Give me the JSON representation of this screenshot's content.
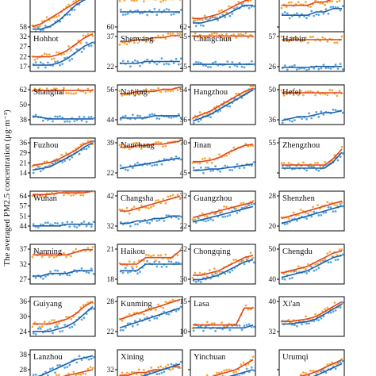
{
  "figure": {
    "ylabel": "The averaged PM2.5 concentration (μg·m⁻³)",
    "colors": {
      "orange_points": "#f6a83a",
      "blue_points": "#5aa6e0",
      "red_line": "#e0461d",
      "blue_line": "#1f5fa8"
    }
  },
  "chart_data": [
    {
      "type": "scatter",
      "city": "",
      "yticks": [
        "66",
        "58"
      ],
      "ylim": [
        55,
        70
      ],
      "o": [
        57,
        58,
        60,
        62,
        64,
        66,
        68,
        69
      ],
      "b": [
        56,
        56,
        57,
        59,
        62,
        65,
        67,
        68
      ]
    },
    {
      "type": "scatter",
      "city": "",
      "yticks": [
        "68",
        "60"
      ],
      "ylim": [
        58,
        70
      ],
      "o": [
        68,
        68,
        68,
        68,
        68,
        68,
        68,
        68
      ],
      "b": [
        64,
        64,
        64,
        64,
        64,
        64,
        64,
        64
      ]
    },
    {
      "type": "scatter",
      "city": "",
      "yticks": [
        "74",
        "62"
      ],
      "ylim": [
        60,
        78
      ],
      "o": [
        66,
        66,
        67,
        68,
        70,
        72,
        74,
        75
      ],
      "b": [
        64,
        64,
        65,
        66,
        68,
        70,
        72,
        72
      ]
    },
    {
      "type": "scatter",
      "city": "",
      "yticks": [
        "36",
        ""
      ],
      "ylim": [
        28,
        40
      ],
      "o": [
        36,
        36,
        36,
        36,
        37,
        37,
        38,
        38
      ],
      "b": [
        33,
        33,
        33,
        33,
        34,
        34,
        35,
        35
      ]
    },
    {
      "type": "scatter",
      "city": "Hohhot",
      "yticks": [
        "32",
        "27",
        "22",
        "17"
      ],
      "ylim": [
        15,
        34
      ],
      "o": [
        22,
        22,
        22,
        23,
        25,
        28,
        31,
        33
      ],
      "b": [
        18,
        18,
        18,
        19,
        21,
        24,
        27,
        29
      ]
    },
    {
      "type": "scatter",
      "city": "Shenyang",
      "yticks": [
        "37",
        "22"
      ],
      "ylim": [
        20,
        40
      ],
      "o": [
        35,
        35,
        36,
        36,
        37,
        37,
        38,
        38
      ],
      "b": [
        24,
        24,
        24,
        25,
        25,
        25,
        25,
        25
      ]
    },
    {
      "type": "scatter",
      "city": "Changchun",
      "yticks": [
        "45",
        "25"
      ],
      "ylim": [
        20,
        48
      ],
      "o": [
        45,
        45,
        45,
        45,
        45,
        45,
        45,
        45
      ],
      "b": [
        25,
        25,
        25,
        25,
        25,
        25,
        25,
        25
      ]
    },
    {
      "type": "scatter",
      "city": "Harbin",
      "yticks": [
        "57",
        "26"
      ],
      "ylim": [
        22,
        62
      ],
      "o": [
        54,
        54,
        54,
        54,
        54,
        54,
        54,
        54
      ],
      "b": [
        26,
        26,
        26,
        26,
        27,
        27,
        27,
        27
      ]
    },
    {
      "type": "scatter",
      "city": "Shanghai",
      "yticks": [
        "62",
        "50",
        "38"
      ],
      "ylim": [
        36,
        64
      ],
      "o": [
        60,
        60,
        60,
        60,
        60,
        60,
        60,
        60
      ],
      "b": [
        42,
        41,
        40,
        40,
        40,
        40,
        40,
        40
      ]
    },
    {
      "type": "scatter",
      "city": "Nanjing",
      "yticks": [
        "56",
        "44"
      ],
      "ylim": [
        42,
        60
      ],
      "o": [
        56,
        56,
        57,
        57,
        57,
        58,
        58,
        59
      ],
      "b": [
        45,
        45,
        45,
        45,
        46,
        46,
        46,
        46
      ]
    },
    {
      "type": "scatter",
      "city": "Hangzhou",
      "yticks": [
        "54",
        "36"
      ],
      "ylim": [
        34,
        58
      ],
      "o": [
        38,
        40,
        42,
        45,
        48,
        51,
        54,
        56
      ],
      "b": [
        36,
        38,
        40,
        43,
        46,
        49,
        52,
        55
      ]
    },
    {
      "type": "scatter",
      "city": "Hefei",
      "yticks": [
        "50",
        "36"
      ],
      "ylim": [
        34,
        54
      ],
      "o": [
        50,
        50,
        50,
        50,
        50,
        50,
        50,
        50
      ],
      "b": [
        36,
        37,
        38,
        38,
        39,
        40,
        40,
        41
      ]
    },
    {
      "type": "scatter",
      "city": "Fuzhou",
      "yticks": [
        "36",
        "29",
        "21",
        "14"
      ],
      "ylim": [
        12,
        38
      ],
      "o": [
        20,
        21,
        22,
        24,
        27,
        30,
        34,
        36
      ],
      "b": [
        17,
        18,
        19,
        22,
        25,
        28,
        32,
        35
      ]
    },
    {
      "type": "scatter",
      "city": "Nanchang",
      "yticks": [
        "39",
        "22"
      ],
      "ylim": [
        18,
        44
      ],
      "o": [
        38,
        38,
        39,
        39,
        40,
        40,
        41,
        42
      ],
      "b": [
        24,
        25,
        26,
        27,
        28,
        29,
        30,
        31
      ]
    },
    {
      "type": "scatter",
      "city": "Jinan",
      "yticks": [
        "70",
        "45"
      ],
      "ylim": [
        42,
        74
      ],
      "o": [
        55,
        55,
        56,
        58,
        62,
        65,
        68,
        69
      ],
      "b": [
        48,
        48,
        49,
        49,
        50,
        51,
        52,
        53
      ]
    },
    {
      "type": "scatter",
      "city": "Zhengzhou",
      "yticks": [
        "55",
        ""
      ],
      "ylim": [
        50,
        75
      ],
      "o": [
        58,
        58,
        58,
        58,
        58,
        58,
        62,
        68
      ],
      "b": [
        56,
        56,
        56,
        56,
        56,
        56,
        60,
        66
      ]
    },
    {
      "type": "scatter",
      "city": "Wuhan",
      "yticks": [
        "64",
        "57",
        "51",
        "44"
      ],
      "ylim": [
        42,
        66
      ],
      "o": [
        64,
        64,
        64,
        65,
        65,
        65,
        65,
        66
      ],
      "b": [
        45,
        45,
        45,
        45,
        46,
        46,
        46,
        46
      ]
    },
    {
      "type": "scatter",
      "city": "Changsha",
      "yticks": [
        "42",
        "32"
      ],
      "ylim": [
        30,
        46
      ],
      "o": [
        38,
        38,
        39,
        40,
        41,
        42,
        43,
        44
      ],
      "b": [
        33,
        33,
        34,
        34,
        35,
        35,
        36,
        36
      ]
    },
    {
      "type": "scatter",
      "city": "Guangzhou",
      "yticks": [
        "32",
        "22"
      ],
      "ylim": [
        18,
        36
      ],
      "o": [
        24,
        25,
        26,
        27,
        28,
        29,
        30,
        31
      ],
      "b": [
        22,
        23,
        24,
        25,
        26,
        27,
        28,
        29
      ]
    },
    {
      "type": "scatter",
      "city": "Shenzhen",
      "yticks": [
        "28",
        "20"
      ],
      "ylim": [
        16,
        32
      ],
      "o": [
        21,
        22,
        23,
        24,
        25,
        26,
        27,
        28
      ],
      "b": [
        19,
        20,
        21,
        22,
        23,
        24,
        25,
        26
      ]
    },
    {
      "type": "scatter",
      "city": "Nanning",
      "yticks": [
        "37",
        "32",
        "27"
      ],
      "ylim": [
        25,
        40
      ],
      "o": [
        36,
        36,
        36,
        36,
        36,
        37,
        38,
        38
      ],
      "b": [
        28,
        28,
        29,
        29,
        29,
        30,
        30,
        30
      ]
    },
    {
      "type": "scatter",
      "city": "Haikou",
      "yticks": [
        "21",
        "18"
      ],
      "ylim": [
        16,
        22
      ],
      "o": [
        19,
        19,
        19,
        20,
        20,
        20,
        20,
        21
      ],
      "b": [
        18,
        18,
        18,
        19,
        19,
        19,
        19,
        19
      ]
    },
    {
      "type": "scatter",
      "city": "Chongqing",
      "yticks": [
        "42",
        "30"
      ],
      "ylim": [
        28,
        46
      ],
      "o": [
        32,
        32,
        33,
        34,
        36,
        38,
        40,
        41
      ],
      "b": [
        30,
        30,
        31,
        32,
        34,
        36,
        38,
        39
      ]
    },
    {
      "type": "scatter",
      "city": "Chengdu",
      "yticks": [
        "50",
        "40"
      ],
      "ylim": [
        36,
        54
      ],
      "o": [
        41,
        42,
        43,
        44,
        46,
        48,
        50,
        51
      ],
      "b": [
        39,
        40,
        41,
        42,
        44,
        46,
        48,
        49
      ]
    },
    {
      "type": "scatter",
      "city": "Guiyang",
      "yticks": [
        "36",
        "30",
        "24"
      ],
      "ylim": [
        22,
        38
      ],
      "o": [
        27,
        27,
        27,
        28,
        29,
        31,
        34,
        36
      ],
      "b": [
        24,
        24,
        24,
        25,
        26,
        28,
        31,
        34
      ]
    },
    {
      "type": "scatter",
      "city": "Kunming",
      "yticks": [
        "28",
        "22"
      ],
      "ylim": [
        18,
        32
      ],
      "o": [
        24,
        25,
        26,
        27,
        28,
        29,
        30,
        31
      ],
      "b": [
        21,
        22,
        23,
        24,
        25,
        26,
        27,
        28
      ]
    },
    {
      "type": "scatter",
      "city": "Lasa",
      "yticks": [
        "15",
        "10"
      ],
      "ylim": [
        6,
        20
      ],
      "o": [
        10,
        10,
        10,
        10,
        10,
        10,
        16,
        16
      ],
      "b": [
        9,
        9,
        9,
        9,
        9,
        9,
        9,
        10
      ]
    },
    {
      "type": "scatter",
      "city": "Xi'an",
      "yticks": [
        "40",
        "32"
      ],
      "ylim": [
        28,
        60
      ],
      "o": [
        40,
        40,
        41,
        42,
        44,
        48,
        52,
        56
      ],
      "b": [
        38,
        38,
        39,
        40,
        42,
        46,
        50,
        54
      ]
    },
    {
      "type": "scatter",
      "city": "Lanzhou",
      "yticks": [
        "38",
        "28",
        "22"
      ],
      "ylim": [
        20,
        40
      ],
      "o": [
        24,
        24,
        25,
        26,
        27,
        28,
        29,
        30
      ],
      "b": [
        26,
        27,
        29,
        31,
        33,
        35,
        36,
        37
      ]
    },
    {
      "type": "scatter",
      "city": "Xining",
      "yticks": [
        "32"
      ],
      "ylim": [
        22,
        36
      ],
      "o": [
        27,
        27,
        28,
        28,
        29,
        29,
        30,
        30
      ],
      "b": [
        24,
        25,
        26,
        27,
        28,
        29,
        30,
        31
      ]
    },
    {
      "type": "scatter",
      "city": "Yinchuan",
      "yticks": [
        ""
      ],
      "ylim": [
        20,
        36
      ],
      "o": [
        24,
        24,
        25,
        26,
        27,
        28,
        30,
        32
      ],
      "b": [
        22,
        22,
        23,
        24,
        25,
        26,
        27,
        28
      ]
    },
    {
      "type": "scatter",
      "city": "Urumqi",
      "yticks": [
        ""
      ],
      "ylim": [
        20,
        60
      ],
      "o": [
        30,
        31,
        33,
        35,
        38,
        42,
        46,
        50
      ],
      "b": [
        26,
        27,
        29,
        31,
        34,
        38,
        42,
        46
      ]
    }
  ]
}
